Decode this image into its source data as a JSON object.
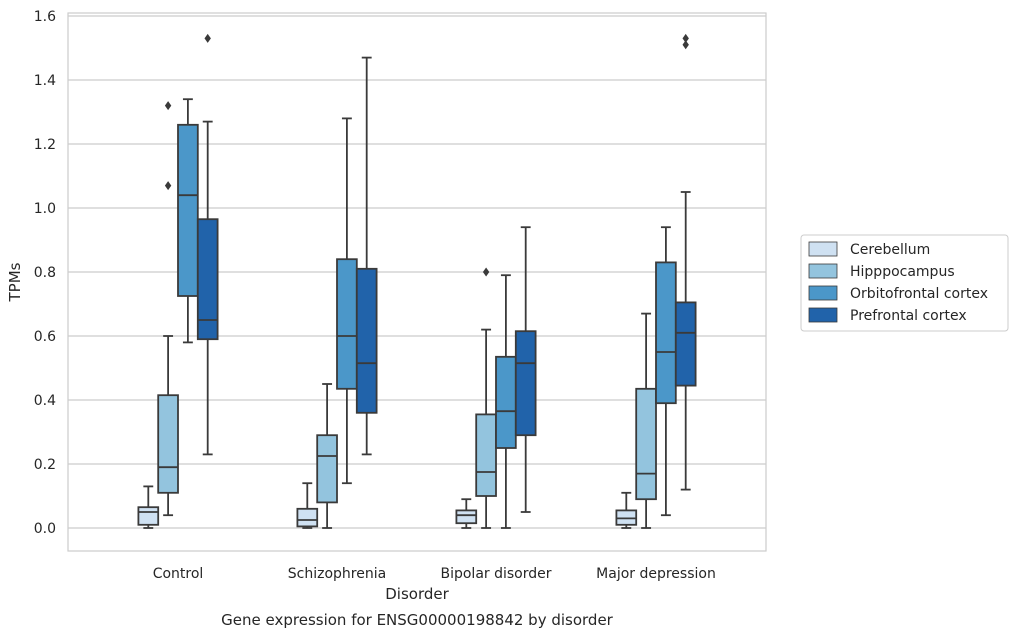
{
  "chart_data": {
    "type": "boxplot",
    "xlabel": "Disorder",
    "ylabel": "TPMs",
    "caption": "Gene expression for ENSG00000198842 by disorder",
    "ylim": [
      -0.07,
      1.61
    ],
    "yticks": [
      "0.0",
      "0.2",
      "0.4",
      "0.6",
      "0.8",
      "1.0",
      "1.2",
      "1.4",
      "1.6"
    ],
    "grid": "horizontal",
    "legend_position": "right",
    "categories": [
      "Control",
      "Schizophrenia",
      "Bipolar disorder",
      "Major depression"
    ],
    "series": [
      {
        "name": "Cerebellum",
        "color": "#cfe1f2",
        "boxes": [
          {
            "min": 0.0,
            "q1": 0.01,
            "median": 0.05,
            "q3": 0.065,
            "max": 0.13,
            "outliers": []
          },
          {
            "min": 0.0,
            "q1": 0.005,
            "median": 0.025,
            "q3": 0.06,
            "max": 0.14,
            "outliers": []
          },
          {
            "min": 0.0,
            "q1": 0.015,
            "median": 0.04,
            "q3": 0.055,
            "max": 0.09,
            "outliers": []
          },
          {
            "min": 0.0,
            "q1": 0.01,
            "median": 0.03,
            "q3": 0.055,
            "max": 0.11,
            "outliers": []
          }
        ]
      },
      {
        "name": "Hipppocampus",
        "color": "#93c4de",
        "boxes": [
          {
            "min": 0.04,
            "q1": 0.11,
            "median": 0.19,
            "q3": 0.415,
            "max": 0.6,
            "outliers": [
              1.07,
              1.32
            ]
          },
          {
            "min": 0.0,
            "q1": 0.08,
            "median": 0.225,
            "q3": 0.29,
            "max": 0.45,
            "outliers": []
          },
          {
            "min": 0.0,
            "q1": 0.1,
            "median": 0.175,
            "q3": 0.355,
            "max": 0.62,
            "outliers": [
              0.8
            ]
          },
          {
            "min": 0.0,
            "q1": 0.09,
            "median": 0.17,
            "q3": 0.435,
            "max": 0.67,
            "outliers": []
          }
        ]
      },
      {
        "name": "Orbitofrontal cortex",
        "color": "#4b97c9",
        "boxes": [
          {
            "min": 0.58,
            "q1": 0.725,
            "median": 1.04,
            "q3": 1.26,
            "max": 1.34,
            "outliers": []
          },
          {
            "min": 0.14,
            "q1": 0.435,
            "median": 0.6,
            "q3": 0.84,
            "max": 1.28,
            "outliers": []
          },
          {
            "min": 0.0,
            "q1": 0.25,
            "median": 0.365,
            "q3": 0.535,
            "max": 0.79,
            "outliers": []
          },
          {
            "min": 0.04,
            "q1": 0.39,
            "median": 0.55,
            "q3": 0.83,
            "max": 0.94,
            "outliers": []
          }
        ]
      },
      {
        "name": "Prefrontal cortex",
        "color": "#2163aa",
        "boxes": [
          {
            "min": 0.23,
            "q1": 0.59,
            "median": 0.65,
            "q3": 0.965,
            "max": 1.27,
            "outliers": [
              1.53
            ]
          },
          {
            "min": 0.23,
            "q1": 0.36,
            "median": 0.515,
            "q3": 0.81,
            "max": 1.47,
            "outliers": []
          },
          {
            "min": 0.05,
            "q1": 0.29,
            "median": 0.515,
            "q3": 0.615,
            "max": 0.94,
            "outliers": []
          },
          {
            "min": 0.12,
            "q1": 0.445,
            "median": 0.61,
            "q3": 0.705,
            "max": 1.05,
            "outliers": [
              1.51,
              1.53
            ]
          }
        ]
      }
    ]
  }
}
